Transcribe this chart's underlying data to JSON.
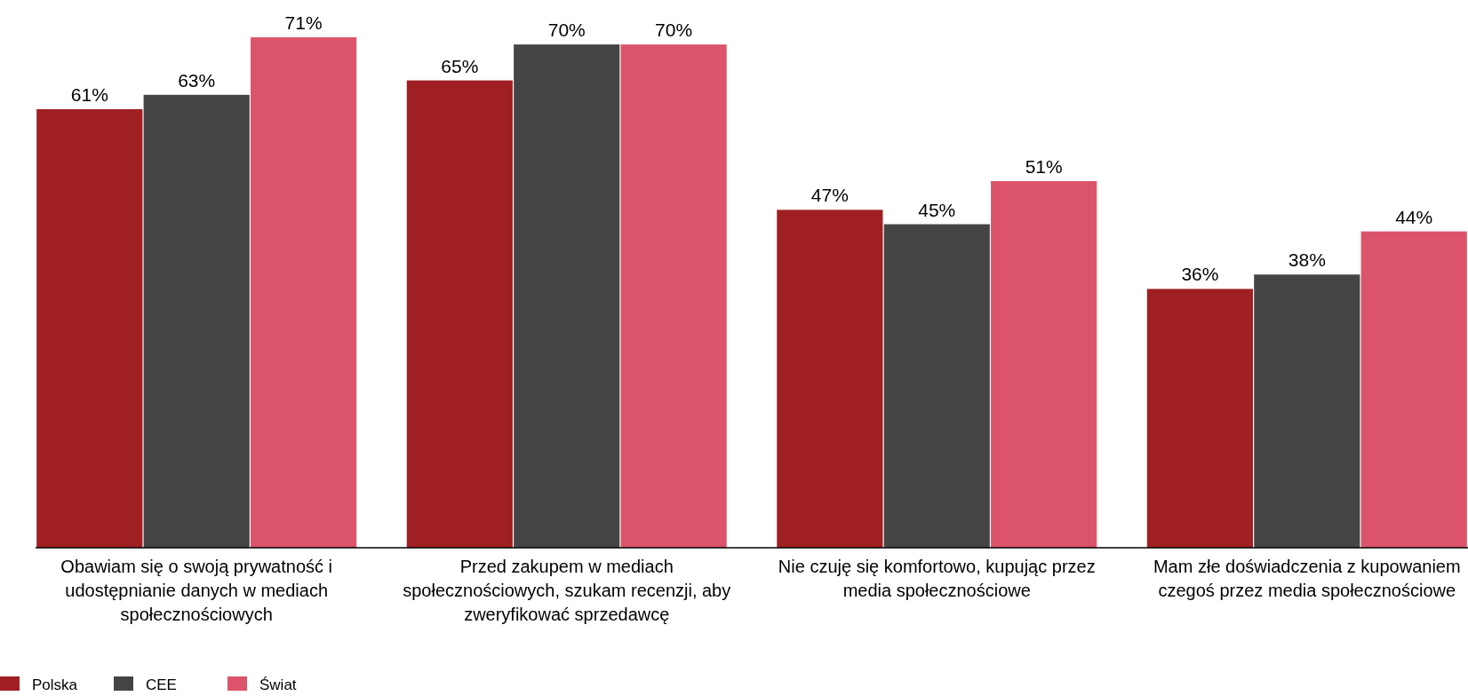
{
  "chart_data": {
    "type": "bar",
    "categories": [
      "Obawiam się o swoją prywatność i udostępnianie danych w mediach społecznościowych",
      "Przed zakupem w mediach społecznościowych, szukam recenzji, aby zweryfikować sprzedawcę",
      "Nie czuję się komfortowo, kupując przez media społecznościowe",
      "Mam złe doświadczenia z kupowaniem czegoś przez media społecznościowe"
    ],
    "series": [
      {
        "name": "Polska",
        "color": "#a01f22",
        "values": [
          61,
          65,
          47,
          36
        ],
        "value_labels": [
          "61%",
          "65%",
          "47%",
          "36%"
        ]
      },
      {
        "name": "CEE",
        "color": "#454545",
        "values": [
          63,
          70,
          45,
          38
        ],
        "value_labels": [
          "63%",
          "70%",
          "45%",
          "38%"
        ]
      },
      {
        "name": "Świat",
        "color": "#db546b",
        "values": [
          71,
          70,
          51,
          44
        ],
        "value_labels": [
          "71%",
          "70%",
          "51%",
          "44%"
        ]
      }
    ],
    "legend": "bottom left"
  }
}
